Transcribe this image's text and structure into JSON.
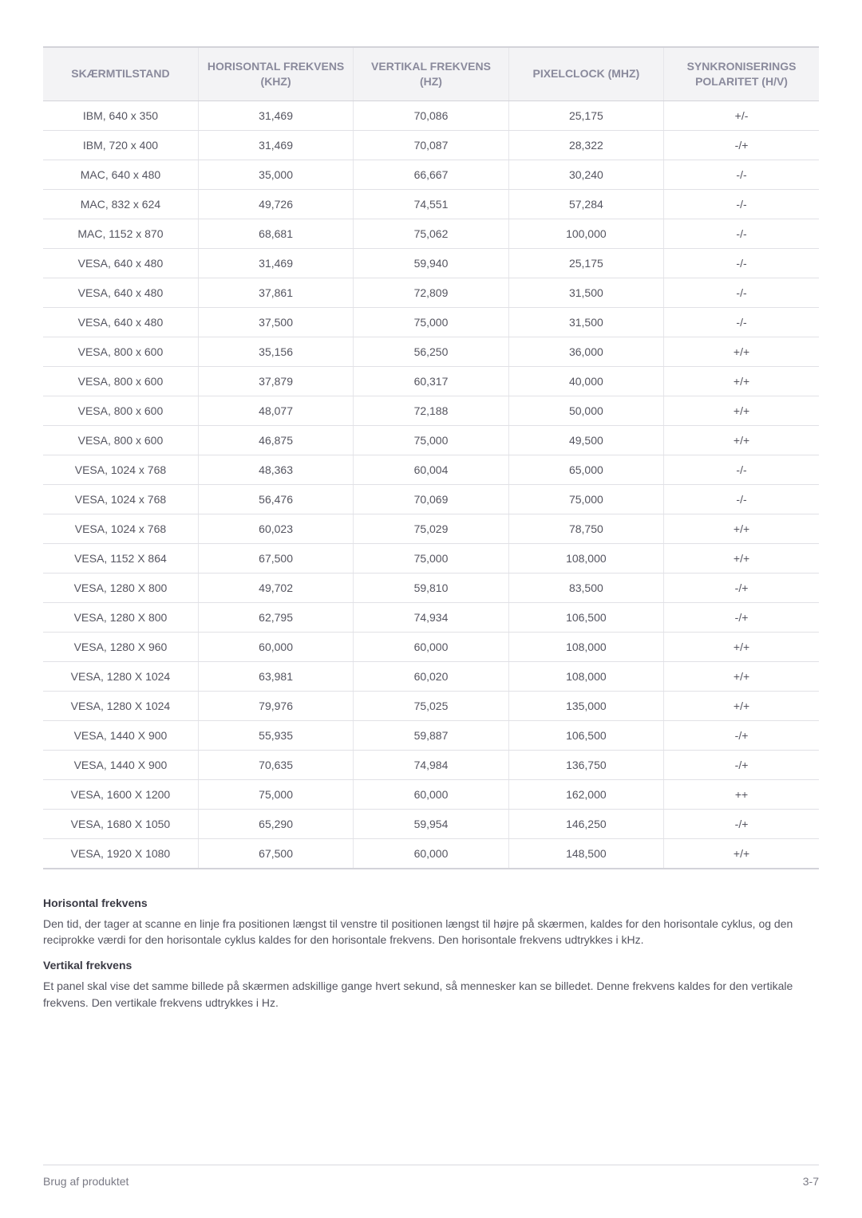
{
  "table": {
    "columns": [
      "SKÆRMTILSTAND",
      "HORISONTAL FREKVENS (KHZ)",
      "VERTIKAL FREKVENS (HZ)",
      "PIXELCLOCK (MHZ)",
      "SYNKRONISERINGS POLARITET (H/V)"
    ],
    "col_widths_pct": [
      20,
      20,
      20,
      20,
      20
    ],
    "header_bg": "#f3f3f5",
    "header_color": "#8a8a9c",
    "cell_color": "#555560",
    "border_color": "#e1e1e6",
    "rows": [
      [
        "IBM, 640 x 350",
        "31,469",
        "70,086",
        "25,175",
        "+/-"
      ],
      [
        "IBM, 720 x 400",
        "31,469",
        "70,087",
        "28,322",
        "-/+"
      ],
      [
        "MAC, 640 x 480",
        "35,000",
        "66,667",
        "30,240",
        "-/-"
      ],
      [
        "MAC, 832 x 624",
        "49,726",
        "74,551",
        "57,284",
        "-/-"
      ],
      [
        "MAC, 1152 x 870",
        "68,681",
        "75,062",
        "100,000",
        "-/-"
      ],
      [
        "VESA, 640 x 480",
        "31,469",
        "59,940",
        "25,175",
        "-/-"
      ],
      [
        "VESA, 640 x 480",
        "37,861",
        "72,809",
        "31,500",
        "-/-"
      ],
      [
        "VESA, 640 x 480",
        "37,500",
        "75,000",
        "31,500",
        "-/-"
      ],
      [
        "VESA, 800 x 600",
        "35,156",
        "56,250",
        "36,000",
        "+/+"
      ],
      [
        "VESA, 800 x 600",
        "37,879",
        "60,317",
        "40,000",
        "+/+"
      ],
      [
        "VESA, 800 x 600",
        "48,077",
        "72,188",
        "50,000",
        "+/+"
      ],
      [
        "VESA, 800 x 600",
        "46,875",
        "75,000",
        "49,500",
        "+/+"
      ],
      [
        "VESA, 1024 x 768",
        "48,363",
        "60,004",
        "65,000",
        "-/-"
      ],
      [
        "VESA, 1024 x 768",
        "56,476",
        "70,069",
        "75,000",
        "-/-"
      ],
      [
        "VESA, 1024 x 768",
        "60,023",
        "75,029",
        "78,750",
        "+/+"
      ],
      [
        "VESA, 1152 X 864",
        "67,500",
        "75,000",
        "108,000",
        "+/+"
      ],
      [
        "VESA, 1280 X 800",
        "49,702",
        "59,810",
        "83,500",
        "-/+"
      ],
      [
        "VESA, 1280 X 800",
        "62,795",
        "74,934",
        "106,500",
        "-/+"
      ],
      [
        "VESA, 1280 X 960",
        "60,000",
        "60,000",
        "108,000",
        "+/+"
      ],
      [
        "VESA, 1280 X 1024",
        "63,981",
        "60,020",
        "108,000",
        "+/+"
      ],
      [
        "VESA, 1280 X 1024",
        "79,976",
        "75,025",
        "135,000",
        "+/+"
      ],
      [
        "VESA, 1440 X 900",
        "55,935",
        "59,887",
        "106,500",
        "-/+"
      ],
      [
        "VESA, 1440 X 900",
        "70,635",
        "74,984",
        "136,750",
        "-/+"
      ],
      [
        "VESA, 1600 X 1200",
        "75,000",
        "60,000",
        "162,000",
        "++"
      ],
      [
        "VESA, 1680 X 1050",
        "65,290",
        "59,954",
        "146,250",
        "-/+"
      ],
      [
        "VESA, 1920 X 1080",
        "67,500",
        "60,000",
        "148,500",
        "+/+"
      ]
    ]
  },
  "sections": {
    "h1_title": "Horisontal frekvens",
    "h1_body": "Den tid, der tager at scanne en linje fra positionen længst til venstre til positionen længst til højre på skærmen, kaldes for den horisontale cyklus, og den reciprokke værdi for den horisontale cyklus kaldes for den horisontale frekvens. Den horisontale frekvens udtrykkes i kHz.",
    "h2_title": "Vertikal frekvens",
    "h2_body": "Et panel skal vise det samme billede på skærmen adskillige gange hvert sekund, så mennesker kan se billedet. Denne frekvens kaldes for den vertikale frekvens. Den vertikale frekvens udtrykkes i Hz."
  },
  "footer": {
    "left": "Brug af produktet",
    "right": "3-7"
  }
}
